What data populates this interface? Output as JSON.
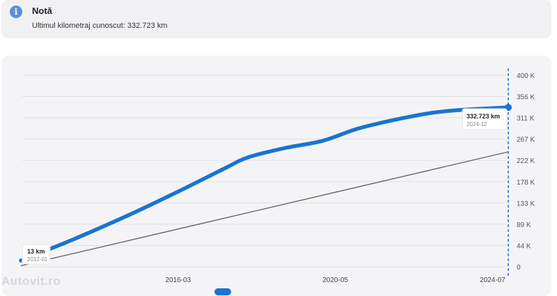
{
  "note": {
    "title": "Notă",
    "text": "Ultimul kilometraj cunoscut: 332.723 km",
    "icon": "info-icon",
    "icon_color": "#5b8fd9"
  },
  "chart_data": {
    "type": "line",
    "y_ticks": [
      "0",
      "44 K",
      "89 K",
      "133 K",
      "178 K",
      "222 K",
      "267 K",
      "311 K",
      "356 K",
      "400 K"
    ],
    "x_ticks": [
      "2016-03",
      "2020-05",
      "2024-07"
    ],
    "ylim": [
      0,
      400000
    ],
    "series": [
      {
        "color": "#1a74d1",
        "points": [
          [
            "2012-01",
            13000
          ],
          [
            "2013-06",
            58000
          ],
          [
            "2014-12",
            110000
          ],
          [
            "2016-03",
            157000
          ],
          [
            "2017-06",
            206000
          ],
          [
            "2018-01",
            228000
          ],
          [
            "2019-01",
            248000
          ],
          [
            "2020-01",
            263000
          ],
          [
            "2021-01",
            290000
          ],
          [
            "2022-06",
            315000
          ],
          [
            "2023-06",
            326000
          ],
          [
            "2024-12",
            332723
          ]
        ]
      },
      {
        "color": "#666666",
        "points": [
          [
            "2012-01",
            2000
          ],
          [
            "2024-12",
            240000
          ]
        ]
      }
    ],
    "annotations": [
      {
        "value": "13 km",
        "date": "2012-01"
      },
      {
        "value": "332.723 km",
        "date": "2024-12"
      }
    ],
    "grid": true
  },
  "watermark": "Autovit.ro"
}
